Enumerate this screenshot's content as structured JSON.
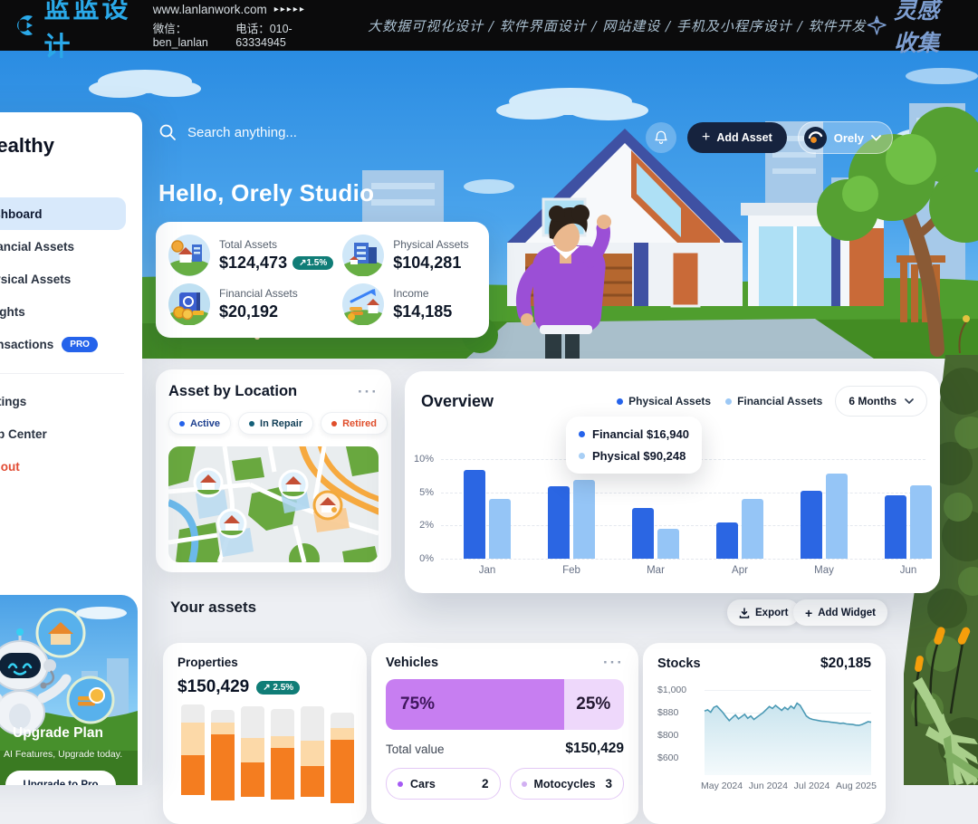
{
  "banner": {
    "brand": "蓝蓝设计",
    "url": "www.lanlanwork.com",
    "url_arrows": "▸▸▸▸▸",
    "wechat": "微信：ben_lanlan",
    "phone": "电话：010-63334945",
    "services": "大数据可视化设计 / 软件界面设计 / 网站建设 / 手机及小程序设计 / 软件开发",
    "collect": "灵感收集"
  },
  "sidebar": {
    "logo": "Wealthy",
    "items": [
      {
        "label": "Dashboard",
        "active": true
      },
      {
        "label": "Financial Assets"
      },
      {
        "label": "Physical Assets"
      },
      {
        "label": "Insights"
      },
      {
        "label": "Transactions",
        "badge": "PRO"
      }
    ],
    "footer_items": [
      {
        "label": "Settings"
      },
      {
        "label": "Help Center"
      },
      {
        "label": "Logout"
      }
    ],
    "promo": {
      "title": "Upgrade Plan",
      "subtitle": "AI Features, Upgrade today.",
      "button": "Upgrade to Pro"
    }
  },
  "header": {
    "search_placeholder": "Search anything...",
    "add_asset_label": "Add Asset",
    "profile_name": "Orely",
    "greeting": "Hello, Orely Studio"
  },
  "stats": {
    "items": [
      {
        "label": "Total Assets",
        "value": "$124,473",
        "badge": "↗1.5%"
      },
      {
        "label": "Physical Assets",
        "value": "$104,281"
      },
      {
        "label": "Financial Assets",
        "value": "$20,192"
      },
      {
        "label": "Income",
        "value": "$14,185"
      }
    ]
  },
  "asset_location": {
    "title": "Asset by Location",
    "menu": "···",
    "chips": [
      {
        "label": "Active",
        "dot_color": "#2563eb"
      },
      {
        "label": "In Repair",
        "dot_color": "#156079"
      },
      {
        "label": "Retired",
        "dot_color": "#e04e2b"
      }
    ]
  },
  "overview": {
    "title": "Overview",
    "legend": [
      {
        "label": "Physical Assets",
        "dot_color": "#2563eb"
      },
      {
        "label": "Financial Assets",
        "dot_color": "#9cc8f5"
      }
    ],
    "period": "6 Months",
    "tooltip": [
      {
        "label": "Financial $16,940",
        "dot_color": "#2563eb"
      },
      {
        "label": "Physical $90,248",
        "dot_color": "#a8cff5"
      }
    ]
  },
  "your_assets": {
    "title": "Your assets",
    "export_label": "Export",
    "add_widget_label": "Add Widget"
  },
  "properties": {
    "title": "Properties",
    "value": "$150,429",
    "badge": "↗ 2.5%"
  },
  "vehicles": {
    "title": "Vehicles",
    "menu": "···",
    "left_pct": "75%",
    "right_pct": "25%",
    "total_label": "Total value",
    "total_value": "$150,429",
    "chips": [
      {
        "label": "Cars",
        "count": "2",
        "dot_color": "#a55af4"
      },
      {
        "label": "Motocycles",
        "count": "3",
        "dot_color": "#d2b0f2"
      }
    ]
  },
  "stocks": {
    "title": "Stocks",
    "value": "$20,185"
  },
  "chart_data": [
    {
      "id": "overview",
      "type": "bar",
      "title": "Overview",
      "categories": [
        "Jan",
        "Feb",
        "Mar",
        "Apr",
        "May",
        "Jun"
      ],
      "series": [
        {
          "name": "Physical Assets",
          "color": "#2b66e3",
          "values": [
            8.3,
            5.9,
            3.6,
            2.3,
            5.2,
            4.7
          ]
        },
        {
          "name": "Financial Assets",
          "color": "#95c5f6",
          "values": [
            4.4,
            6.8,
            1.8,
            4.4,
            7.8,
            6.1
          ]
        }
      ],
      "unit": "%",
      "yticks": [
        0,
        2,
        5,
        10
      ],
      "ytick_labels": [
        "0%",
        "2%",
        "5%",
        "10%"
      ],
      "scale_note": "ticks equally spaced (non-linear scale)",
      "grid": "dashed horizontal",
      "legend_position": "top-right",
      "tooltip": {
        "Financial": "$16,940",
        "Physical": "$90,248"
      }
    },
    {
      "id": "properties",
      "type": "bar",
      "subtype": "stacked-vertical",
      "title": "Properties",
      "colors": {
        "filled": "#f47d20",
        "secondary": "#fcd9a8",
        "track": "#ececec"
      },
      "bars": [
        {
          "top_offset": 0,
          "track": 20,
          "secondary": 36,
          "filled": 44
        },
        {
          "top_offset": 6,
          "track": 14,
          "secondary": 13,
          "filled": 73
        },
        {
          "top_offset": 2,
          "track": 35,
          "secondary": 27,
          "filled": 38
        },
        {
          "top_offset": 5,
          "track": 30,
          "secondary": 13,
          "filled": 57
        },
        {
          "top_offset": 2,
          "track": 38,
          "secondary": 28,
          "filled": 34
        },
        {
          "top_offset": 9,
          "track": 17,
          "secondary": 13,
          "filled": 70
        }
      ],
      "note": "segment heights in px, bars clipped at viewport bottom"
    },
    {
      "id": "stocks",
      "type": "area",
      "title": "Stocks",
      "values": [
        888,
        895,
        882,
        908,
        915,
        898,
        880,
        865,
        852,
        862,
        872,
        858,
        866,
        874,
        860,
        868,
        856,
        864,
        872,
        880,
        896,
        912,
        902,
        918,
        905,
        892,
        908,
        896,
        915,
        902,
        930,
        918,
        890,
        868,
        860,
        856,
        854,
        852,
        850,
        849,
        848,
        846,
        845,
        844,
        842,
        843,
        840,
        839,
        838,
        836,
        835,
        838,
        843,
        848,
        846
      ],
      "unit": "$",
      "yticks": [
        1000,
        880,
        800,
        600
      ],
      "ytick_labels": [
        "$1,000",
        "$880",
        "$800",
        "$600"
      ],
      "xtick_labels": [
        "May 2024",
        "Jun 2024",
        "Jul 2024",
        "Aug 2025"
      ],
      "scale_note": "ticks equally spaced (non-linear scale)",
      "line_color": "#4c9ab5",
      "fill_color": "#c9e4ee"
    }
  ]
}
